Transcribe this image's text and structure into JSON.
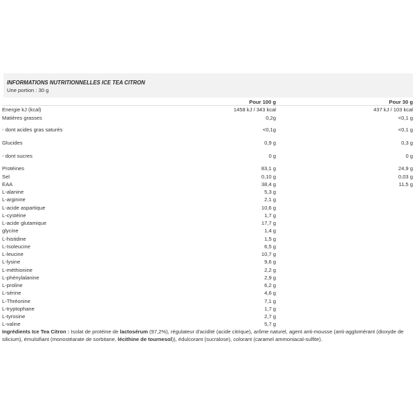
{
  "header": {
    "title": "INFORMATIONS NUTRITIONNELLES ICE TEA CITRON",
    "portion": "Une portion : 30 g"
  },
  "columns": {
    "per100": "Pour 100 g",
    "per30": "Pour 30 g"
  },
  "rows": [
    {
      "label": "Energie kJ (kcal)",
      "per100": "1458 kJ / 343 kcal",
      "per30": "437 kJ / 103 kcal"
    },
    {
      "label": "Matières grasses",
      "per100": "0,2g",
      "per30": "<0,1 g"
    },
    {
      "label": "- dont acides gras saturés",
      "per100": "<0,1g",
      "per30": "<0,1 g"
    },
    {
      "label": "Glucides",
      "per100": "0,9 g",
      "per30": "0,3 g"
    },
    {
      "label": "- dont sucres",
      "per100": "0 g",
      "per30": "0 g"
    },
    {
      "label": "Protéines",
      "per100": "83,1 g",
      "per30": "24,9 g"
    },
    {
      "label": "Sel",
      "per100": "0,10 g",
      "per30": "0,03 g"
    },
    {
      "label": "EAA",
      "per100": "38,4 g",
      "per30": "11,5 g"
    },
    {
      "label": "L-alanine",
      "per100": "5,3 g",
      "per30": ""
    },
    {
      "label": "L-arginine",
      "per100": "2,1 g",
      "per30": ""
    },
    {
      "label": "L-acide aspartique",
      "per100": "10,6 g",
      "per30": ""
    },
    {
      "label": "L-cystéine",
      "per100": "1,7 g",
      "per30": ""
    },
    {
      "label": "L-acide glutamique",
      "per100": "17,7 g",
      "per30": ""
    },
    {
      "label": "glycine",
      "per100": "1,4 g",
      "per30": ""
    },
    {
      "label": "L-histidine",
      "per100": "1,5 g",
      "per30": ""
    },
    {
      "label": "L-Isoleucine",
      "per100": "6,5 g",
      "per30": ""
    },
    {
      "label": "L-leucine",
      "per100": "10,7 g",
      "per30": ""
    },
    {
      "label": "L-lysine",
      "per100": "9,6 g",
      "per30": ""
    },
    {
      "label": "L-méthionine",
      "per100": "2,2 g",
      "per30": ""
    },
    {
      "label": "L-phénylalanine",
      "per100": "2,9 g",
      "per30": ""
    },
    {
      "label": "L-proline",
      "per100": "6,2 g",
      "per30": ""
    },
    {
      "label": "L-sérine",
      "per100": "4,6 g",
      "per30": ""
    },
    {
      "label": "L-Thréonine",
      "per100": "7,1 g",
      "per30": ""
    },
    {
      "label": "L-tryptophane",
      "per100": "1,7 g",
      "per30": ""
    },
    {
      "label": "L-tyrosine",
      "per100": "2,7 g",
      "per30": ""
    },
    {
      "label": "L-valine",
      "per100": "5,7 g",
      "per30": ""
    }
  ],
  "ingredients": {
    "heading": "Ingrédients Ice Tea Citron :",
    "t1": " Isolat de protéine de ",
    "b1": "lactosérum",
    "t2": " (97,2%), régulateur d'acidité (acide citrique), arôme naturel, agent anti-mousse (anti-agglomérant (dioxyde de silicium), émulsifiant (monostéarate de sorbitane, ",
    "b2": "lécithine de tournesol",
    "t3": ")), édulcorant (sucralose), colorant (caramel ammoniacal-sulfite)."
  }
}
